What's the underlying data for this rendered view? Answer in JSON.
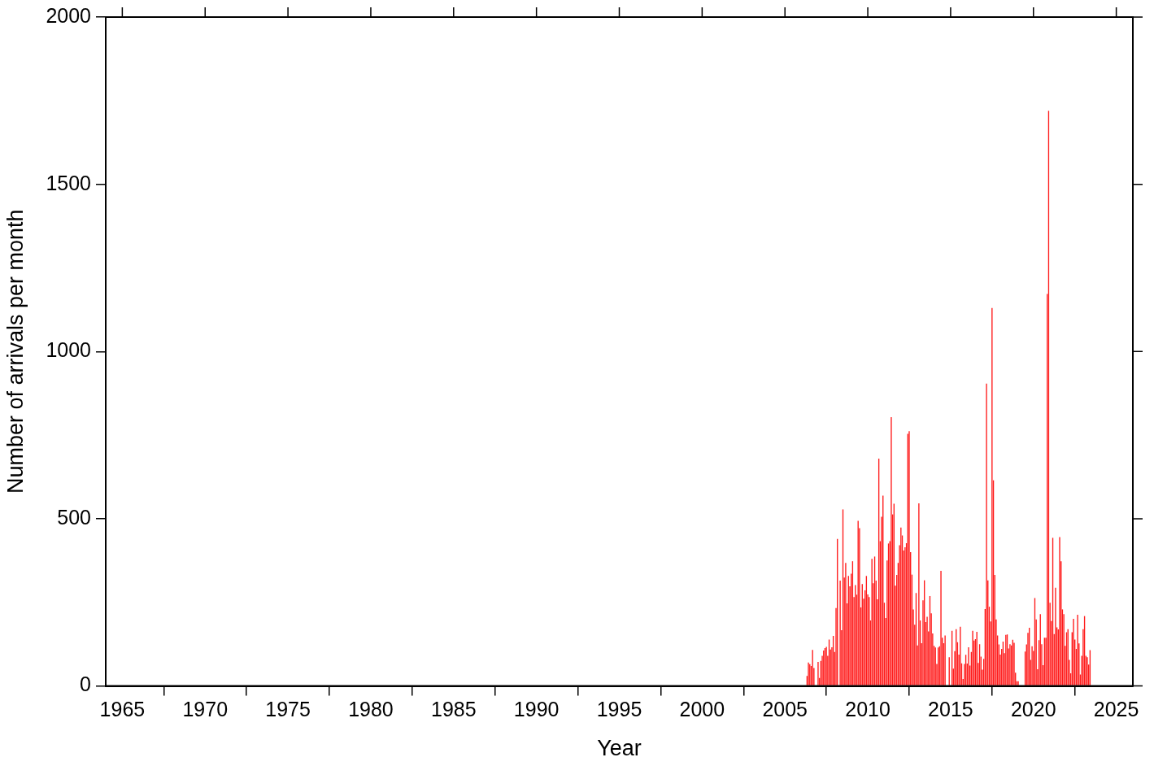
{
  "chart_data": {
    "type": "bar",
    "xlabel": "Year",
    "ylabel": "Number of arrivals per month",
    "color": "#ff1a1a",
    "xlim": [
      "1964",
      "2026"
    ],
    "xticks": [
      "1965",
      "1970",
      "1975",
      "1980",
      "1985",
      "1990",
      "1995",
      "2000",
      "2005",
      "2010",
      "2015",
      "2020",
      "2025"
    ],
    "ylim": [
      0,
      2000
    ],
    "yticks": [
      0,
      500,
      1000,
      1500,
      2000
    ],
    "grid": false,
    "legend": false,
    "x": [
      "2006-05",
      "2006-06",
      "2006-07",
      "2006-08",
      "2006-09",
      "2006-10",
      "2006-11",
      "2006-12",
      "2007-01",
      "2007-02",
      "2007-03",
      "2007-04",
      "2007-05",
      "2007-06",
      "2007-07",
      "2007-08",
      "2007-09",
      "2007-10",
      "2007-11",
      "2007-12",
      "2008-01",
      "2008-02",
      "2008-03",
      "2008-04",
      "2008-05",
      "2008-06",
      "2008-07",
      "2008-08",
      "2008-09",
      "2008-10",
      "2008-11",
      "2008-12",
      "2009-01",
      "2009-02",
      "2009-03",
      "2009-04",
      "2009-05",
      "2009-06",
      "2009-07",
      "2009-08",
      "2009-09",
      "2009-10",
      "2009-11",
      "2009-12",
      "2010-01",
      "2010-02",
      "2010-03",
      "2010-04",
      "2010-05",
      "2010-06",
      "2010-07",
      "2010-08",
      "2010-09",
      "2010-10",
      "2010-11",
      "2010-12",
      "2011-01",
      "2011-02",
      "2011-03",
      "2011-04",
      "2011-05",
      "2011-06",
      "2011-07",
      "2011-08",
      "2011-09",
      "2011-10",
      "2011-11",
      "2011-12",
      "2012-01",
      "2012-02",
      "2012-03",
      "2012-04",
      "2012-05",
      "2012-06",
      "2012-07",
      "2012-08",
      "2012-09",
      "2012-10",
      "2012-11",
      "2012-12",
      "2013-01",
      "2013-02",
      "2013-03",
      "2013-04",
      "2013-05",
      "2013-06",
      "2013-07",
      "2013-08",
      "2013-09",
      "2013-10",
      "2013-11",
      "2013-12",
      "2014-01",
      "2014-02",
      "2014-03",
      "2014-04",
      "2014-05",
      "2014-06",
      "2014-07",
      "2014-08",
      "2014-09",
      "2014-10",
      "2014-11",
      "2014-12",
      "2015-01",
      "2015-02",
      "2015-03",
      "2015-04",
      "2015-05",
      "2015-06",
      "2015-07",
      "2015-08",
      "2015-09",
      "2015-10",
      "2015-11",
      "2015-12",
      "2016-01",
      "2016-02",
      "2016-03",
      "2016-04",
      "2016-05",
      "2016-06",
      "2016-07",
      "2016-08",
      "2016-09",
      "2016-10",
      "2016-11",
      "2016-12",
      "2017-01",
      "2017-02",
      "2017-03",
      "2017-04",
      "2017-05",
      "2017-06",
      "2017-07",
      "2017-08",
      "2017-09",
      "2017-10",
      "2017-11",
      "2017-12",
      "2018-01",
      "2018-02",
      "2018-03",
      "2018-04",
      "2018-05",
      "2018-06",
      "2018-07",
      "2018-08",
      "2018-09",
      "2018-10",
      "2018-11",
      "2018-12",
      "2019-01",
      "2019-02",
      "2019-03",
      "2019-04",
      "2019-05",
      "2019-06",
      "2019-07",
      "2019-08",
      "2019-09",
      "2019-10",
      "2019-11",
      "2019-12",
      "2020-01",
      "2020-02",
      "2020-03",
      "2020-04",
      "2020-05",
      "2020-06",
      "2020-07",
      "2020-08",
      "2020-09",
      "2020-10",
      "2020-11",
      "2020-12",
      "2021-01",
      "2021-02",
      "2021-03",
      "2021-04",
      "2021-05",
      "2021-06",
      "2021-07",
      "2021-08",
      "2021-09",
      "2021-10",
      "2021-11",
      "2021-12",
      "2022-01",
      "2022-02",
      "2022-03",
      "2022-04",
      "2022-05",
      "2022-06",
      "2022-07",
      "2022-08",
      "2022-09",
      "2022-10",
      "2022-11",
      "2022-12",
      "2023-01",
      "2023-02",
      "2023-03",
      "2023-04",
      "2023-05",
      "2023-06"
    ],
    "values": [
      30,
      70,
      65,
      60,
      108,
      54,
      0,
      0,
      72,
      24,
      75,
      90,
      106,
      113,
      117,
      90,
      139,
      109,
      116,
      150,
      102,
      233,
      440,
      0,
      315,
      167,
      528,
      324,
      368,
      247,
      329,
      298,
      336,
      373,
      266,
      302,
      273,
      494,
      472,
      235,
      305,
      261,
      286,
      329,
      274,
      266,
      196,
      380,
      307,
      387,
      315,
      259,
      680,
      433,
      506,
      569,
      249,
      203,
      375,
      426,
      433,
      804,
      513,
      545,
      300,
      332,
      368,
      421,
      474,
      450,
      405,
      415,
      427,
      754,
      762,
      400,
      333,
      229,
      183,
      278,
      121,
      546,
      196,
      128,
      256,
      316,
      191,
      207,
      163,
      269,
      217,
      157,
      120,
      115,
      66,
      115,
      119,
      344,
      144,
      128,
      151,
      0,
      0,
      86,
      0,
      165,
      52,
      104,
      170,
      131,
      94,
      177,
      68,
      21,
      66,
      93,
      67,
      116,
      61,
      102,
      165,
      136,
      140,
      162,
      69,
      125,
      88,
      49,
      81,
      230,
      904,
      316,
      237,
      193,
      1130,
      615,
      332,
      199,
      151,
      124,
      94,
      111,
      133,
      98,
      153,
      154,
      112,
      125,
      121,
      138,
      129,
      40,
      14,
      14,
      0,
      0,
      0,
      0,
      103,
      124,
      159,
      174,
      78,
      119,
      105,
      263,
      199,
      50,
      137,
      215,
      125,
      62,
      144,
      144,
      1172,
      1720,
      249,
      194,
      443,
      155,
      294,
      175,
      169,
      445,
      373,
      229,
      215,
      120,
      161,
      170,
      78,
      38,
      161,
      201,
      139,
      111,
      213,
      127,
      34,
      90,
      170,
      209,
      90,
      86,
      64,
      107
    ]
  }
}
